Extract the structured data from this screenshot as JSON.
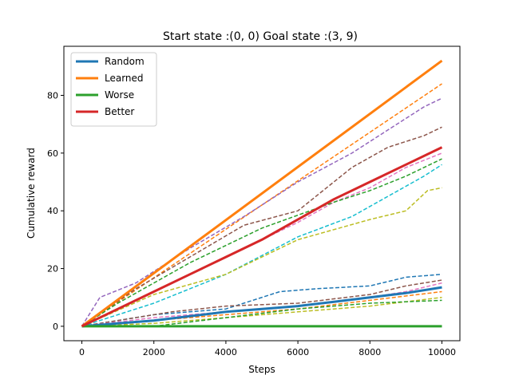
{
  "chart_data": {
    "type": "line",
    "title": "Start state :(0, 0) Goal state :(3, 9)",
    "xlabel": "Steps",
    "ylabel": "Cumulative reward",
    "xlim": [
      -500,
      10500
    ],
    "ylim": [
      -5,
      97
    ],
    "xticks": [
      0,
      2000,
      4000,
      6000,
      8000,
      10000
    ],
    "yticks": [
      0,
      20,
      40,
      60,
      80
    ],
    "legend_position": "top-left",
    "series": [
      {
        "name": "Random",
        "color": "#1f77b4",
        "style": "solid",
        "in_legend": true,
        "x": [
          0,
          1000,
          2000,
          3000,
          4000,
          5000,
          6000,
          7000,
          8000,
          9000,
          10000
        ],
        "y": [
          0,
          1,
          2,
          3.5,
          5,
          6,
          7,
          8.5,
          10,
          11.5,
          13.5
        ]
      },
      {
        "name": "Learned",
        "color": "#ff7f0e",
        "style": "solid",
        "in_legend": true,
        "x": [
          0,
          10000
        ],
        "y": [
          0,
          92
        ]
      },
      {
        "name": "Worse",
        "color": "#2ca02c",
        "style": "solid",
        "in_legend": true,
        "x": [
          0,
          10000
        ],
        "y": [
          0,
          0
        ]
      },
      {
        "name": "Better",
        "color": "#d62728",
        "style": "solid",
        "in_legend": true,
        "x": [
          0,
          1000,
          2000,
          3000,
          4000,
          5000,
          6000,
          7000,
          8000,
          9000,
          10000
        ],
        "y": [
          0,
          6,
          12,
          18,
          24,
          30,
          37,
          44,
          50,
          56,
          62
        ]
      },
      {
        "color": "#1f77b4",
        "style": "dashed",
        "x": [
          0,
          10000
        ],
        "y": [
          0,
          92
        ]
      },
      {
        "color": "#7f7f7f",
        "style": "dashed",
        "x": [
          0,
          10000
        ],
        "y": [
          0,
          92
        ]
      },
      {
        "color": "#ff7f0e",
        "style": "dashed",
        "x": [
          0,
          10000
        ],
        "y": [
          0,
          84
        ]
      },
      {
        "color": "#9467bd",
        "style": "dashed",
        "x": [
          0,
          500,
          1500,
          3000,
          4500,
          6000,
          7500,
          8500,
          9500,
          10000
        ],
        "y": [
          0,
          10,
          15,
          27,
          38,
          50,
          60,
          68,
          76,
          79
        ]
      },
      {
        "color": "#8c564b",
        "style": "dashed",
        "x": [
          0,
          1500,
          3000,
          4500,
          6000,
          7500,
          8500,
          9500,
          10000
        ],
        "y": [
          0,
          13,
          24,
          35,
          40,
          55,
          62,
          66,
          69
        ]
      },
      {
        "color": "#e377c2",
        "style": "dashed",
        "x": [
          0,
          2000,
          4000,
          6000,
          7000,
          8000,
          9000,
          10000
        ],
        "y": [
          0,
          12,
          24,
          36,
          43,
          48,
          55,
          60
        ]
      },
      {
        "color": "#2ca02c",
        "style": "dashed",
        "x": [
          0,
          1000,
          3000,
          5000,
          7000,
          8000,
          9000,
          10000
        ],
        "y": [
          0,
          8,
          22,
          34,
          43,
          47,
          52,
          58
        ]
      },
      {
        "color": "#17becf",
        "style": "dashed",
        "x": [
          0,
          2000,
          4000,
          6000,
          7500,
          8500,
          9500,
          10000
        ],
        "y": [
          0,
          8,
          18,
          31,
          38,
          45,
          52,
          56
        ]
      },
      {
        "color": "#bcbd22",
        "style": "dashed",
        "x": [
          0,
          2000,
          4000,
          6000,
          8000,
          9000,
          9600,
          10000
        ],
        "y": [
          0,
          11,
          18,
          30,
          37,
          40,
          47,
          48
        ]
      },
      {
        "color": "#1f77b4",
        "style": "dashed",
        "x": [
          0,
          2000,
          4000,
          5500,
          6500,
          8000,
          9000,
          10000
        ],
        "y": [
          0,
          4,
          6,
          12,
          13,
          14,
          17,
          18
        ]
      },
      {
        "color": "#8c564b",
        "style": "dashed",
        "x": [
          0,
          1000,
          2500,
          4000,
          6000,
          8000,
          9000,
          10000
        ],
        "y": [
          0,
          2,
          5,
          7,
          8,
          11,
          14,
          16
        ]
      },
      {
        "color": "#e377c2",
        "style": "dashed",
        "x": [
          0,
          2000,
          4000,
          6000,
          8000,
          9000,
          10000
        ],
        "y": [
          0,
          3,
          5,
          7,
          10,
          12,
          15
        ]
      },
      {
        "color": "#ff7f0e",
        "style": "dashed",
        "x": [
          0,
          2000,
          4000,
          6000,
          8000,
          10000
        ],
        "y": [
          0,
          2,
          4,
          6,
          9,
          12
        ]
      },
      {
        "color": "#bcbd22",
        "style": "dashed",
        "x": [
          0,
          2000,
          4000,
          6000,
          8000,
          10000
        ],
        "y": [
          0,
          1,
          3,
          5,
          7,
          10
        ]
      },
      {
        "color": "#2ca02c",
        "style": "dashed",
        "x": [
          0,
          2000,
          4000,
          6000,
          8000,
          10000
        ],
        "y": [
          0,
          0,
          3,
          6,
          8,
          9
        ]
      }
    ]
  }
}
